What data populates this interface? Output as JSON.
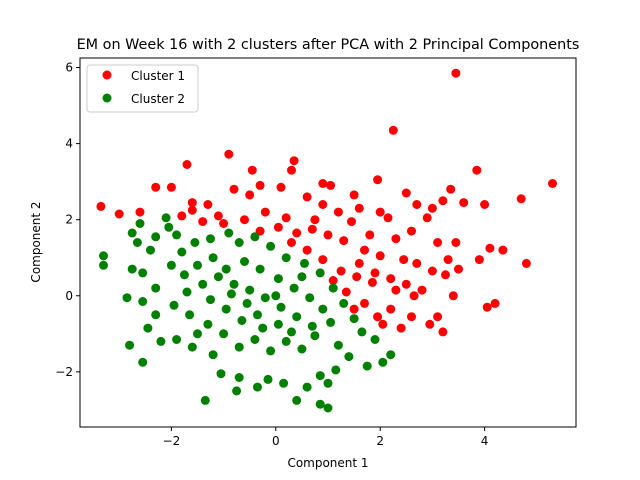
{
  "chart_data": {
    "type": "scatter",
    "title": "EM on Week 16 with 2 clusters after PCA with 2 Principal Components",
    "xlabel": "Component 1",
    "ylabel": "Component 2",
    "xlim": [
      -3.75,
      5.75
    ],
    "ylim": [
      -3.45,
      6.25
    ],
    "xticks": [
      -2,
      0,
      2,
      4
    ],
    "yticks": [
      -2,
      0,
      2,
      4,
      6
    ],
    "xtick_labels": [
      "−2",
      "0",
      "2",
      "4"
    ],
    "ytick_labels": [
      "−2",
      "0",
      "2",
      "4",
      "6"
    ],
    "grid": false,
    "legend_position": "top-left",
    "series": [
      {
        "name": "Cluster 1",
        "color": "#ff0000",
        "points": [
          [
            3.45,
            5.85
          ],
          [
            2.25,
            4.35
          ],
          [
            -0.9,
            3.72
          ],
          [
            -1.7,
            3.45
          ],
          [
            -0.45,
            3.3
          ],
          [
            0.35,
            3.55
          ],
          [
            0.9,
            2.95
          ],
          [
            1.05,
            2.9
          ],
          [
            1.5,
            2.65
          ],
          [
            1.95,
            3.05
          ],
          [
            2.5,
            2.7
          ],
          [
            3.35,
            2.8
          ],
          [
            3.85,
            3.3
          ],
          [
            4.7,
            2.55
          ],
          [
            5.3,
            2.95
          ],
          [
            -3.35,
            2.35
          ],
          [
            -3.0,
            2.15
          ],
          [
            -2.3,
            2.85
          ],
          [
            -2.0,
            2.85
          ],
          [
            -1.6,
            2.45
          ],
          [
            -1.6,
            2.25
          ],
          [
            -1.3,
            2.4
          ],
          [
            -1.1,
            2.1
          ],
          [
            -0.8,
            2.8
          ],
          [
            -0.5,
            2.65
          ],
          [
            -0.3,
            2.9
          ],
          [
            0.1,
            2.85
          ],
          [
            0.3,
            3.3
          ],
          [
            0.6,
            2.6
          ],
          [
            0.9,
            2.4
          ],
          [
            1.2,
            2.2
          ],
          [
            1.6,
            2.3
          ],
          [
            2.0,
            2.2
          ],
          [
            2.7,
            2.4
          ],
          [
            3.0,
            2.3
          ],
          [
            3.2,
            2.5
          ],
          [
            3.6,
            2.45
          ],
          [
            4.0,
            2.4
          ],
          [
            2.9,
            2.05
          ],
          [
            2.15,
            2.05
          ],
          [
            1.45,
            1.95
          ],
          [
            0.75,
            2.0
          ],
          [
            0.2,
            2.05
          ],
          [
            -0.2,
            2.2
          ],
          [
            -0.6,
            2.0
          ],
          [
            -1.0,
            1.9
          ],
          [
            -1.4,
            1.95
          ],
          [
            -1.8,
            2.1
          ],
          [
            -2.6,
            2.2
          ],
          [
            1.8,
            1.6
          ],
          [
            2.3,
            1.5
          ],
          [
            2.6,
            1.7
          ],
          [
            3.1,
            1.4
          ],
          [
            3.45,
            1.4
          ],
          [
            3.9,
            0.95
          ],
          [
            4.1,
            1.25
          ],
          [
            4.35,
            1.2
          ],
          [
            4.8,
            0.85
          ],
          [
            3.3,
            0.95
          ],
          [
            3.0,
            0.65
          ],
          [
            2.7,
            0.85
          ],
          [
            2.45,
            0.95
          ],
          [
            2.0,
            1.05
          ],
          [
            1.7,
            1.2
          ],
          [
            1.3,
            1.45
          ],
          [
            1.0,
            1.6
          ],
          [
            0.7,
            1.75
          ],
          [
            0.4,
            1.65
          ],
          [
            0.05,
            1.8
          ],
          [
            -0.3,
            1.7
          ],
          [
            1.6,
            0.85
          ],
          [
            1.9,
            0.6
          ],
          [
            2.2,
            0.45
          ],
          [
            2.5,
            0.3
          ],
          [
            2.8,
            0.15
          ],
          [
            3.25,
            0.55
          ],
          [
            3.5,
            0.7
          ],
          [
            3.1,
            -0.55
          ],
          [
            2.95,
            -0.75
          ],
          [
            3.2,
            -0.95
          ],
          [
            2.6,
            -0.55
          ],
          [
            2.4,
            -0.85
          ],
          [
            2.2,
            -0.35
          ],
          [
            1.95,
            -0.55
          ],
          [
            2.05,
            -0.75
          ],
          [
            1.7,
            -0.2
          ],
          [
            1.5,
            -0.35
          ],
          [
            1.35,
            0.1
          ],
          [
            1.1,
            0.4
          ],
          [
            1.25,
            0.65
          ],
          [
            0.9,
            0.95
          ],
          [
            0.6,
            1.2
          ],
          [
            0.3,
            1.4
          ],
          [
            4.2,
            -0.2
          ],
          [
            4.05,
            -0.3
          ],
          [
            3.4,
            0.0
          ],
          [
            2.65,
            0.0
          ],
          [
            2.3,
            0.15
          ],
          [
            1.85,
            0.35
          ],
          [
            1.55,
            0.5
          ]
        ]
      },
      {
        "name": "Cluster 2",
        "color": "#008000",
        "points": [
          [
            -3.3,
            1.05
          ],
          [
            -3.3,
            0.8
          ],
          [
            -2.75,
            1.65
          ],
          [
            -2.65,
            1.4
          ],
          [
            -2.75,
            0.7
          ],
          [
            -2.85,
            -0.05
          ],
          [
            -2.8,
            -1.3
          ],
          [
            -2.55,
            -1.75
          ],
          [
            -2.6,
            1.9
          ],
          [
            -2.3,
            1.55
          ],
          [
            -2.1,
            2.05
          ],
          [
            -2.05,
            1.8
          ],
          [
            -1.9,
            1.6
          ],
          [
            -1.55,
            1.4
          ],
          [
            -1.25,
            1.5
          ],
          [
            -0.9,
            1.65
          ],
          [
            -0.7,
            1.4
          ],
          [
            -0.4,
            1.55
          ],
          [
            -0.1,
            1.3
          ],
          [
            0.2,
            1.0
          ],
          [
            0.55,
            0.85
          ],
          [
            0.85,
            0.6
          ],
          [
            1.1,
            0.2
          ],
          [
            1.3,
            -0.2
          ],
          [
            1.5,
            -0.6
          ],
          [
            1.65,
            -0.95
          ],
          [
            1.9,
            -1.15
          ],
          [
            2.2,
            -1.55
          ],
          [
            2.05,
            -1.75
          ],
          [
            1.75,
            -1.85
          ],
          [
            1.4,
            -1.6
          ],
          [
            1.15,
            -1.95
          ],
          [
            1.0,
            -2.3
          ],
          [
            0.85,
            -2.1
          ],
          [
            0.6,
            -2.4
          ],
          [
            0.4,
            -2.75
          ],
          [
            0.85,
            -2.85
          ],
          [
            1.0,
            -2.95
          ],
          [
            0.15,
            -2.3
          ],
          [
            -0.15,
            -2.2
          ],
          [
            -0.35,
            -2.4
          ],
          [
            -0.7,
            -2.15
          ],
          [
            -0.75,
            -2.5
          ],
          [
            -1.05,
            -2.05
          ],
          [
            -1.35,
            -2.75
          ],
          [
            -1.2,
            -1.55
          ],
          [
            -1.6,
            -1.35
          ],
          [
            -1.9,
            -1.15
          ],
          [
            -2.2,
            -1.2
          ],
          [
            -2.45,
            -0.85
          ],
          [
            -2.3,
            -0.5
          ],
          [
            -2.55,
            -0.15
          ],
          [
            -2.3,
            0.2
          ],
          [
            -2.55,
            0.6
          ],
          [
            -2.0,
            0.8
          ],
          [
            -1.75,
            0.55
          ],
          [
            -1.5,
            0.8
          ],
          [
            -1.2,
            1.0
          ],
          [
            -0.95,
            0.7
          ],
          [
            -0.6,
            0.9
          ],
          [
            -0.3,
            0.7
          ],
          [
            0.05,
            0.45
          ],
          [
            0.35,
            0.2
          ],
          [
            0.65,
            -0.05
          ],
          [
            0.9,
            -0.35
          ],
          [
            1.05,
            -0.7
          ],
          [
            0.75,
            -1.05
          ],
          [
            0.5,
            -1.4
          ],
          [
            0.2,
            -1.2
          ],
          [
            -0.1,
            -1.45
          ],
          [
            -0.4,
            -1.15
          ],
          [
            -0.7,
            -1.35
          ],
          [
            -1.0,
            -1.0
          ],
          [
            -1.3,
            -0.75
          ],
          [
            -1.65,
            -0.5
          ],
          [
            -1.95,
            -0.25
          ],
          [
            -1.7,
            0.1
          ],
          [
            -1.4,
            0.3
          ],
          [
            -1.1,
            0.5
          ],
          [
            -0.8,
            0.3
          ],
          [
            -0.5,
            0.15
          ],
          [
            -0.2,
            -0.05
          ],
          [
            0.1,
            -0.3
          ],
          [
            0.4,
            -0.55
          ],
          [
            0.7,
            -0.8
          ],
          [
            -0.35,
            -0.5
          ],
          [
            -0.65,
            -0.65
          ],
          [
            -0.95,
            -0.35
          ],
          [
            -1.25,
            -0.1
          ],
          [
            -0.55,
            -0.2
          ],
          [
            -0.25,
            -0.85
          ],
          [
            0.05,
            -0.75
          ],
          [
            0.3,
            -0.95
          ],
          [
            -0.85,
            0.05
          ],
          [
            -1.5,
            -1.0
          ],
          [
            -1.8,
            1.15
          ],
          [
            -2.4,
            1.2
          ],
          [
            0.5,
            0.5
          ],
          [
            1.2,
            -1.3
          ],
          [
            0.0,
            0.0
          ]
        ]
      }
    ]
  }
}
